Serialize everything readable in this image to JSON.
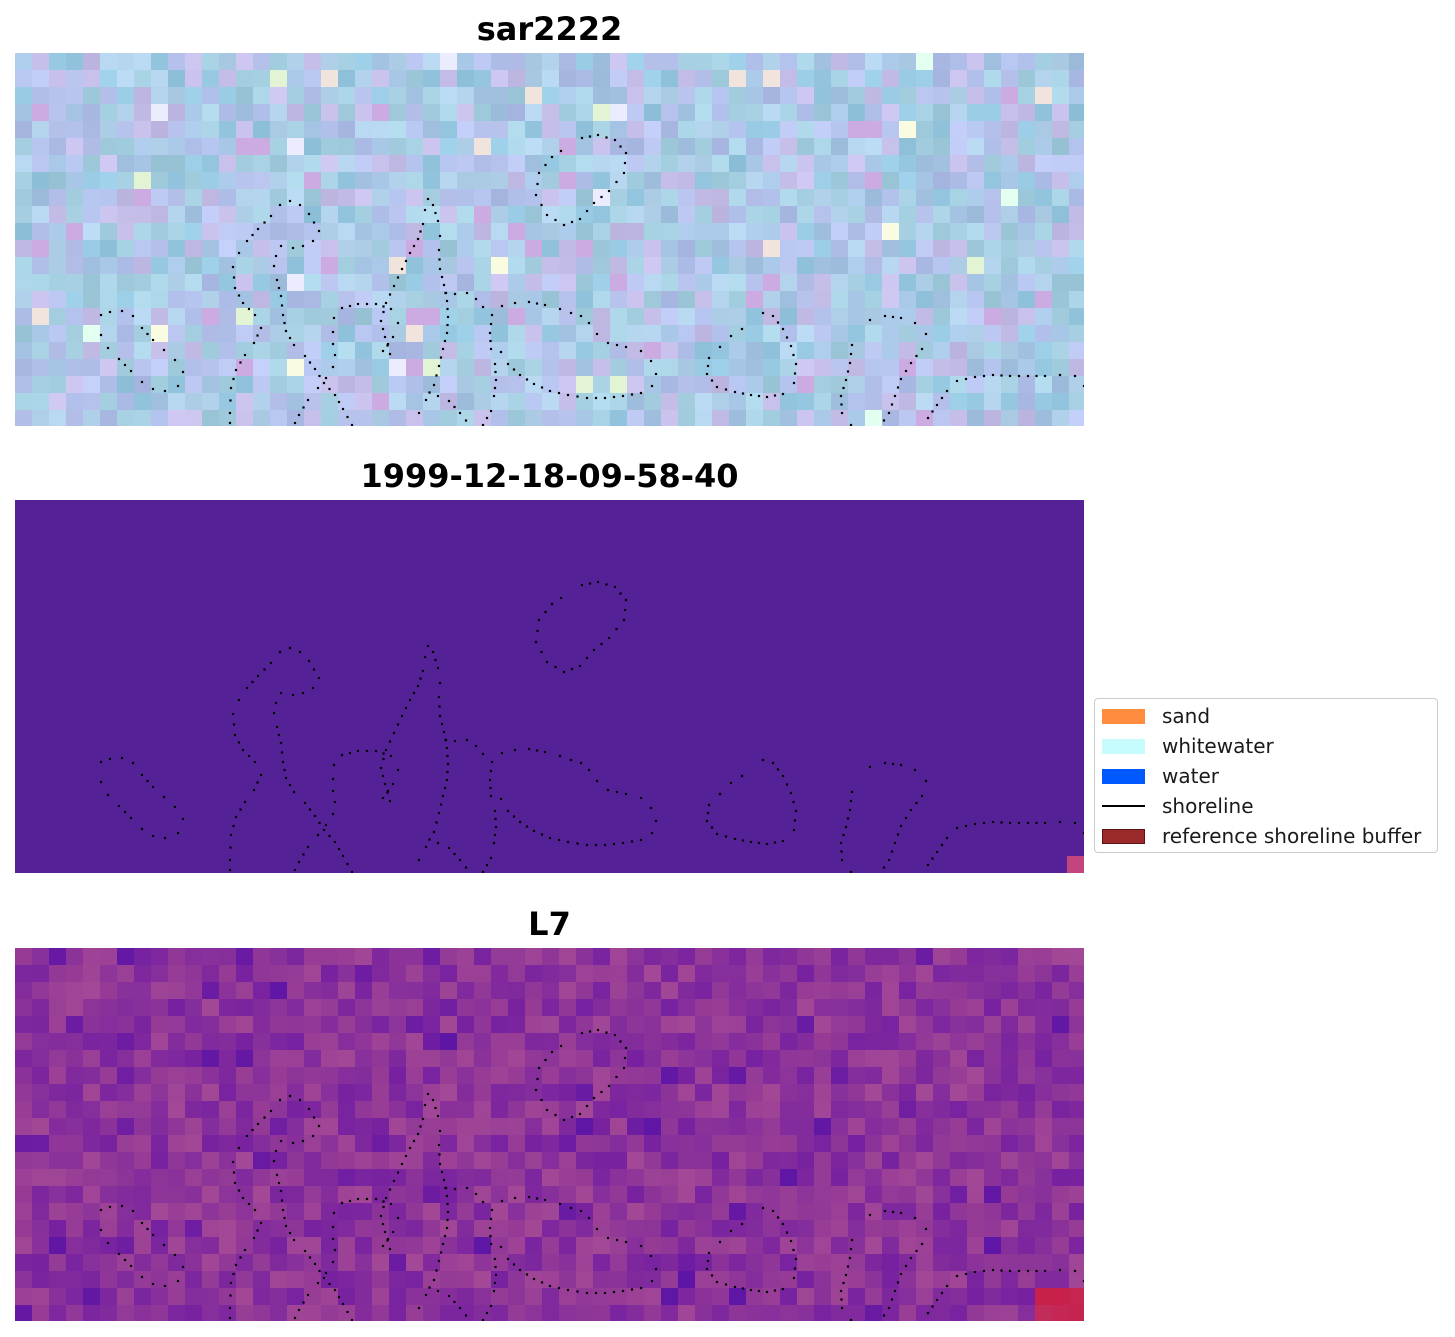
{
  "panels": [
    {
      "title": "sar2222",
      "style": "rgb"
    },
    {
      "title": "1999-12-18-09-58-40",
      "style": "classified"
    },
    {
      "title": "L7",
      "style": "index"
    }
  ],
  "legend": {
    "items": [
      {
        "label": "sand",
        "color": "#ff8c3f",
        "kind": "patch"
      },
      {
        "label": "whitewater",
        "color": "#c6fcfc",
        "kind": "patch"
      },
      {
        "label": "water",
        "color": "#0059ff",
        "kind": "patch"
      },
      {
        "label": "shoreline",
        "color": "#000000",
        "kind": "line"
      },
      {
        "label": "reference shoreline buffer",
        "color": "#9a2a2a",
        "kind": "patch"
      }
    ]
  },
  "colors": {
    "classified_background": "#542197",
    "classified_corner": "#c2457e",
    "shoreline_dots": "#000000"
  }
}
